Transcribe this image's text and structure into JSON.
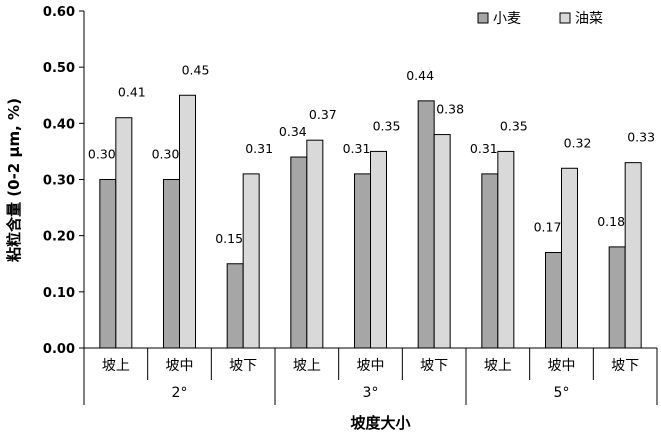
{
  "chart_data": {
    "type": "bar",
    "ylabel": "粘粒含量 (0-2 μm, %)",
    "xlabel": "坡度大小",
    "ylim": [
      0,
      0.6
    ],
    "yticks": [
      "0.00",
      "0.10",
      "0.20",
      "0.30",
      "0.40",
      "0.50",
      "0.60"
    ],
    "groups": [
      {
        "label": "2°",
        "categories": [
          "坡上",
          "坡中",
          "坡下"
        ]
      },
      {
        "label": "3°",
        "categories": [
          "坡上",
          "坡中",
          "坡下"
        ]
      },
      {
        "label": "5°",
        "categories": [
          "坡上",
          "坡中",
          "坡下"
        ]
      }
    ],
    "categories": [
      "坡上",
      "坡中",
      "坡下",
      "坡上",
      "坡中",
      "坡下",
      "坡上",
      "坡中",
      "坡下"
    ],
    "series": [
      {
        "name": "小麦",
        "color": "#a6a6a6",
        "values": [
          0.3,
          0.3,
          0.15,
          0.34,
          0.31,
          0.44,
          0.31,
          0.17,
          0.18
        ],
        "labels": [
          "0.30",
          "0.30",
          "0.15",
          "0.34",
          "0.31",
          "0.44",
          "0.31",
          "0.17",
          "0.18"
        ]
      },
      {
        "name": "油菜",
        "color": "#d9d9d9",
        "values": [
          0.41,
          0.45,
          0.31,
          0.37,
          0.35,
          0.38,
          0.35,
          0.32,
          0.33
        ],
        "labels": [
          "0.41",
          "0.45",
          "0.31",
          "0.37",
          "0.35",
          "0.38",
          "0.35",
          "0.32",
          "0.33"
        ]
      }
    ],
    "legend_position": "top-right",
    "grid": false
  }
}
